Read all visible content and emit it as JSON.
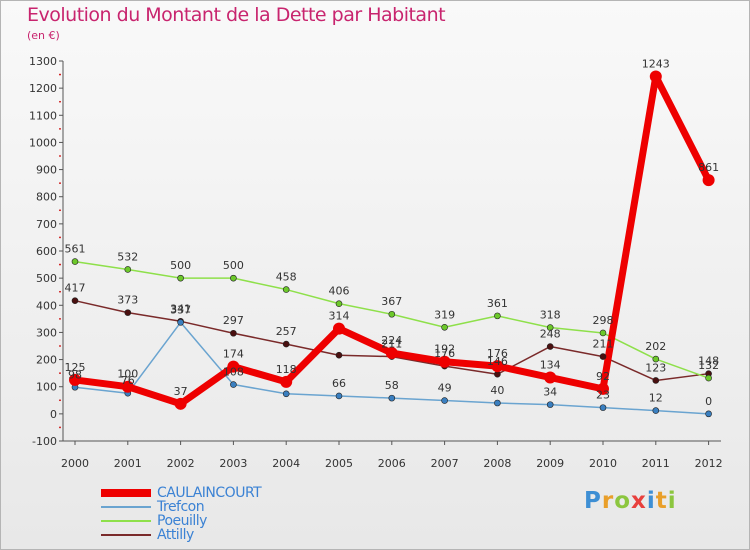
{
  "title": "Evolution du Montant de la Dette par Habitant",
  "unit": "(en €)",
  "logo": {
    "text": "Proxiti",
    "colors": [
      "#3e8fd4",
      "#e99f2a",
      "#8cc63f",
      "#e8403d",
      "#3e8fd4",
      "#e99f2a",
      "#8cc63f"
    ]
  },
  "chart_data": {
    "type": "line",
    "title": "Evolution du Montant de la Dette par Habitant",
    "xlabel": "",
    "ylabel": "(en €)",
    "x": [
      "2000",
      "2001",
      "2002",
      "2003",
      "2004",
      "2005",
      "2006",
      "2007",
      "2008",
      "2009",
      "2010",
      "2011",
      "2012"
    ],
    "ylim": [
      -100,
      1300
    ],
    "yticks": [
      -100,
      0,
      100,
      200,
      300,
      400,
      500,
      600,
      700,
      800,
      900,
      1000,
      1100,
      1200,
      1300
    ],
    "grid": false,
    "legend_position": "bottom-left",
    "series": [
      {
        "name": "Attilly",
        "color": "#7a2a2a",
        "marker": "#4a1010",
        "width": 1.5,
        "values": [
          417,
          373,
          341,
          297,
          257,
          216,
          211,
          176,
          146,
          248,
          211,
          123,
          148
        ],
        "labels": [
          "417",
          "373",
          "341",
          "297",
          "257",
          "",
          "211",
          "176",
          "146",
          "248",
          "211",
          "123",
          "148"
        ]
      },
      {
        "name": "Poeuilly",
        "color": "#8ee04a",
        "marker": "#6cc82a",
        "width": 1.5,
        "values": [
          561,
          532,
          500,
          500,
          458,
          406,
          367,
          319,
          361,
          318,
          298,
          202,
          132
        ],
        "labels": [
          "561",
          "532",
          "500",
          "500",
          "458",
          "406",
          "367",
          "319",
          "361",
          "318",
          "298",
          "202",
          "132"
        ]
      },
      {
        "name": "Trefcon",
        "color": "#6aa4d0",
        "marker": "#3a7fc0",
        "width": 1.5,
        "values": [
          98,
          76,
          337,
          108,
          74,
          66,
          58,
          49,
          40,
          34,
          23,
          12,
          0
        ],
        "labels": [
          "98",
          "76",
          "337",
          "108",
          "",
          "66",
          "58",
          "49",
          "40",
          "34",
          "23",
          "12",
          "0"
        ]
      },
      {
        "name": "CAULAINCOURT",
        "color": "#ee0000",
        "marker": "#ee0000",
        "width": 7,
        "values": [
          125,
          100,
          37,
          174,
          118,
          314,
          224,
          192,
          176,
          134,
          92,
          1243,
          861
        ],
        "labels": [
          "125",
          "100",
          "37",
          "174",
          "118",
          "314",
          "224",
          "192",
          "176",
          "134",
          "92",
          "1243",
          "861"
        ]
      }
    ]
  }
}
